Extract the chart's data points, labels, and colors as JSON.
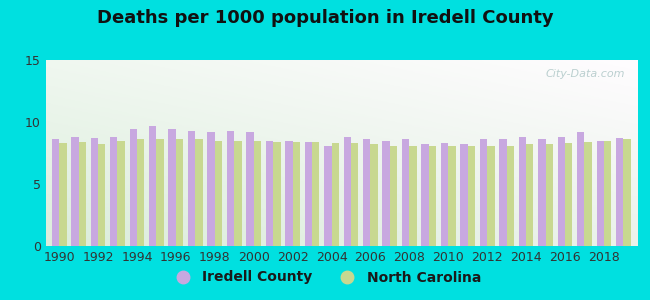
{
  "title": "Deaths per 1000 population in Iredell County",
  "background_outer": "#00e0e0",
  "background_inner_tl": "#e0f0e0",
  "background_inner_tr": "#f0faf5",
  "bar_color_iredell": "#c8a8e0",
  "bar_color_nc": "#c8d890",
  "years": [
    1990,
    1991,
    1992,
    1993,
    1994,
    1995,
    1996,
    1997,
    1998,
    1999,
    2000,
    2001,
    2002,
    2003,
    2004,
    2005,
    2006,
    2007,
    2008,
    2009,
    2010,
    2011,
    2012,
    2013,
    2014,
    2015,
    2016,
    2017,
    2018,
    2019
  ],
  "iredell_values": [
    8.6,
    8.8,
    8.7,
    8.8,
    9.4,
    9.7,
    9.4,
    9.3,
    9.2,
    9.3,
    9.2,
    8.5,
    8.5,
    8.4,
    8.1,
    8.8,
    8.6,
    8.5,
    8.6,
    8.2,
    8.3,
    8.2,
    8.6,
    8.6,
    8.8,
    8.6,
    8.8,
    9.2,
    8.5,
    8.7
  ],
  "nc_values": [
    8.3,
    8.4,
    8.2,
    8.5,
    8.6,
    8.6,
    8.6,
    8.6,
    8.5,
    8.5,
    8.5,
    8.4,
    8.4,
    8.4,
    8.3,
    8.3,
    8.2,
    8.1,
    8.1,
    8.1,
    8.1,
    8.1,
    8.1,
    8.1,
    8.2,
    8.2,
    8.3,
    8.4,
    8.5,
    8.6
  ],
  "ylim": [
    0,
    15
  ],
  "yticks": [
    0,
    5,
    10,
    15
  ],
  "legend_iredell": "Iredell County",
  "legend_nc": "North Carolina",
  "watermark": "City-Data.com",
  "title_fontsize": 13,
  "tick_fontsize": 9,
  "legend_fontsize": 10
}
